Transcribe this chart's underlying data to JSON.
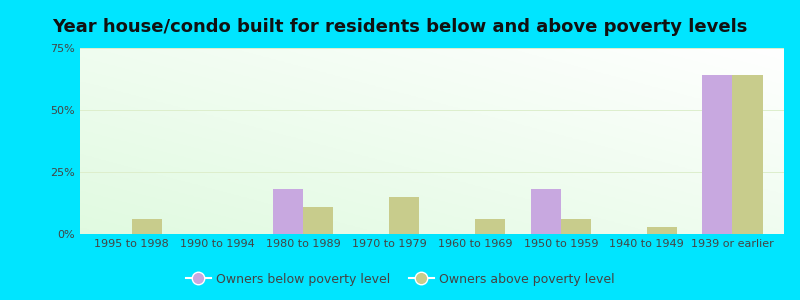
{
  "title": "Year house/condo built for residents below and above poverty levels",
  "categories": [
    "1995 to 1998",
    "1990 to 1994",
    "1980 to 1989",
    "1970 to 1979",
    "1960 to 1969",
    "1950 to 1959",
    "1940 to 1949",
    "1939 or earlier"
  ],
  "below_poverty": [
    0,
    0,
    18,
    0,
    0,
    18,
    0,
    64
  ],
  "above_poverty": [
    6,
    0,
    11,
    15,
    6,
    6,
    3,
    64
  ],
  "below_color": "#c8a8e0",
  "above_color": "#c8cc8c",
  "outer_bg": "#00e5ff",
  "ylim": [
    0,
    75
  ],
  "yticks": [
    0,
    25,
    50,
    75
  ],
  "ytick_labels": [
    "0%",
    "25%",
    "50%",
    "75%"
  ],
  "legend_below": "Owners below poverty level",
  "legend_above": "Owners above poverty level",
  "title_fontsize": 13,
  "tick_fontsize": 8,
  "legend_fontsize": 9
}
